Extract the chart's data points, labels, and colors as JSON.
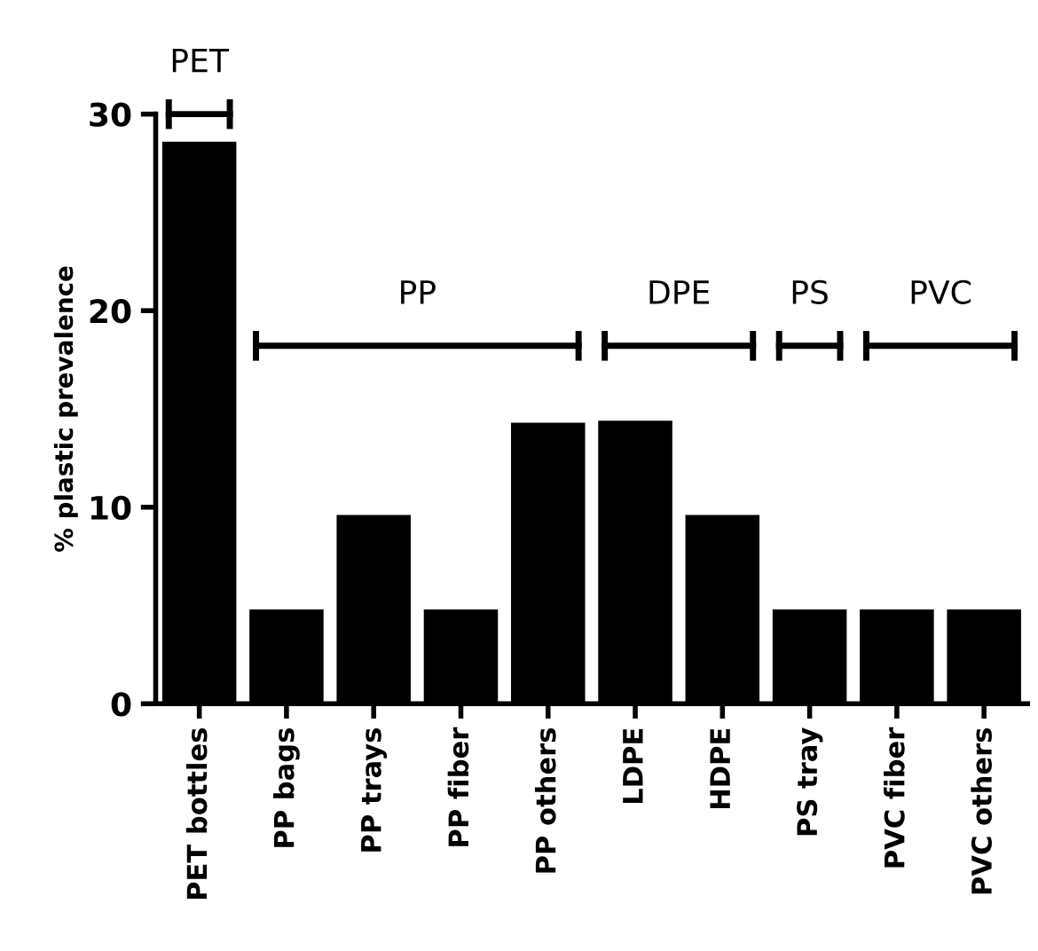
{
  "chart_data": {
    "type": "bar",
    "ylabel": "% plastic prevalence",
    "categories": [
      "PET bottles",
      "PP bags",
      "PP trays",
      "PP fiber",
      "PP others",
      "LDPE",
      "HDPE",
      "PS tray",
      "PVC fiber",
      "PVC others"
    ],
    "values": [
      28.6,
      4.8,
      9.6,
      4.8,
      14.3,
      14.4,
      9.6,
      4.8,
      4.8,
      4.8
    ],
    "color": "#000000",
    "ylim": [
      0,
      30
    ],
    "yticks": [
      0,
      10,
      20,
      30
    ],
    "grid": false,
    "legend": false,
    "annotations": [
      "PET",
      "PP",
      "DPE",
      "PS",
      "PVC"
    ]
  }
}
